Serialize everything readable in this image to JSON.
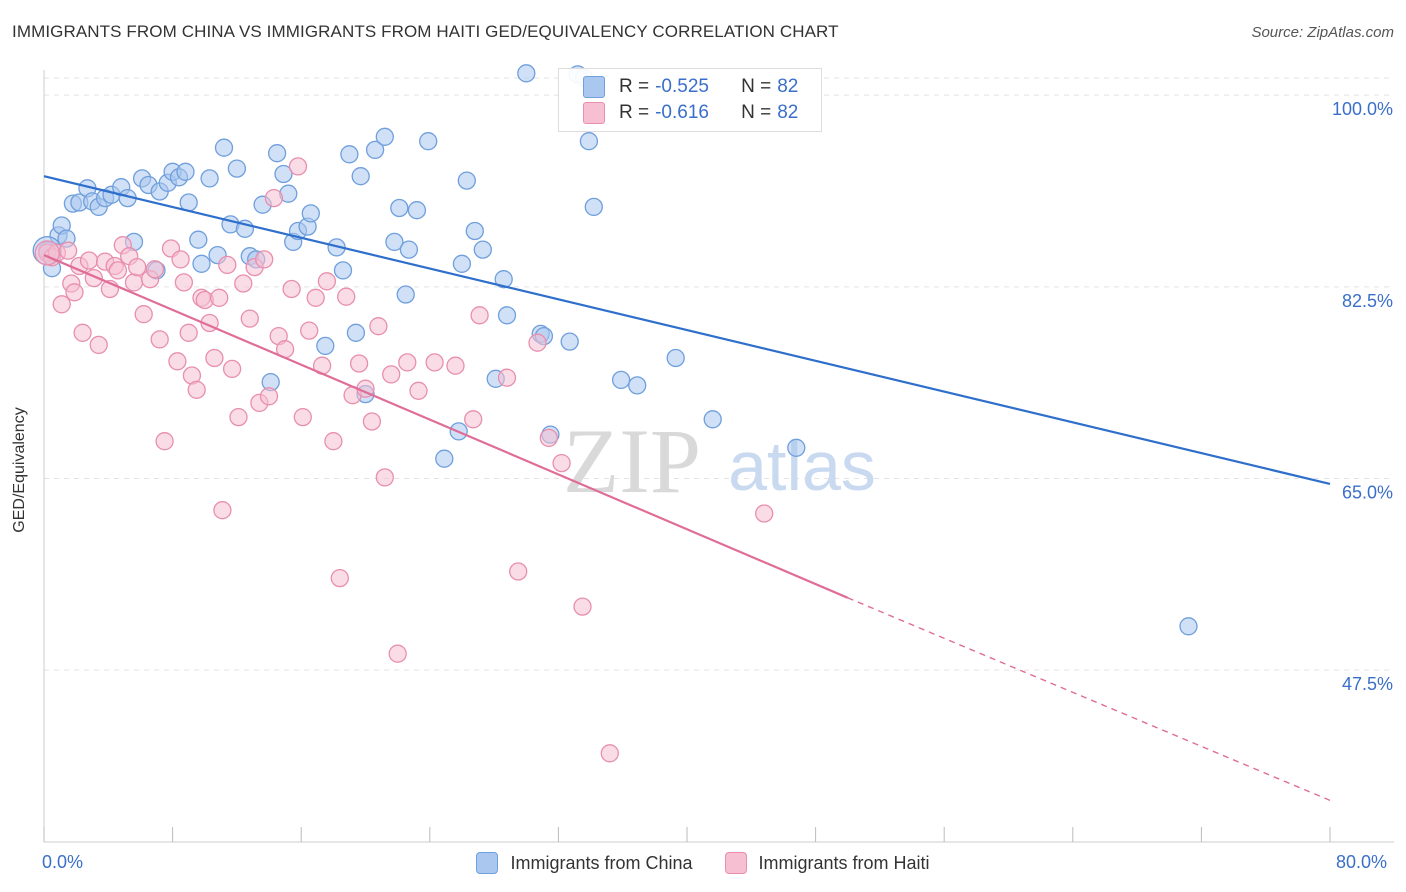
{
  "title": "IMMIGRANTS FROM CHINA VS IMMIGRANTS FROM HAITI GED/EQUIVALENCY CORRELATION CHART",
  "source": "Source: ZipAtlas.com",
  "watermark": {
    "zip": "ZIP",
    "atlas": "atlas"
  },
  "colors": {
    "china_fill": "#a9c7ef",
    "china_stroke": "#6f9fdc",
    "china_line": "#2f6fcc",
    "haiti_fill": "#f6c0d2",
    "haiti_stroke": "#e88fae",
    "haiti_line": "#e06d98",
    "axis_label": "#3a6fc9",
    "grid": "#e3e3e3"
  },
  "legend_top": [
    {
      "r_key": "R =",
      "r_value": "-0.525",
      "n_key": "N =",
      "n_value": "82"
    },
    {
      "r_key": "R =",
      "r_value": "-0.616",
      "n_key": "N =",
      "n_value": "82"
    }
  ],
  "chart_data": {
    "type": "scatter",
    "title": "IMMIGRANTS FROM CHINA VS IMMIGRANTS FROM HAITI GED/EQUIVALENCY CORRELATION CHART",
    "xlabel": "",
    "ylabel": "GED/Equivalency",
    "xlim": [
      0,
      80
    ],
    "ylim": [
      31.8,
      102.3
    ],
    "x_tick_labels": [
      "0.0%",
      "80.0%"
    ],
    "y_ticks": [
      100.0,
      82.5,
      65.0,
      47.5
    ],
    "y_tick_labels": [
      "100.0%",
      "82.5%",
      "65.0%",
      "47.5%"
    ],
    "grid": true,
    "legend_position": "bottom-center",
    "series": [
      {
        "name": "Immigrants from China",
        "r": -0.525,
        "n": 82,
        "trend": {
          "x0": 0,
          "y0": 92.6,
          "x1": 80,
          "y1": 64.5
        },
        "points": [
          [
            0.2,
            85.8
          ],
          [
            0.5,
            84.2
          ],
          [
            0.9,
            87.2
          ],
          [
            1.1,
            88.1
          ],
          [
            1.4,
            86.9
          ],
          [
            1.8,
            90.1
          ],
          [
            2.2,
            90.2
          ],
          [
            2.7,
            91.5
          ],
          [
            3.0,
            90.3
          ],
          [
            3.4,
            89.8
          ],
          [
            3.8,
            90.6
          ],
          [
            4.2,
            90.9
          ],
          [
            4.8,
            91.6
          ],
          [
            5.2,
            90.6
          ],
          [
            5.6,
            86.6
          ],
          [
            6.1,
            92.4
          ],
          [
            6.5,
            91.8
          ],
          [
            7.0,
            84.0
          ],
          [
            7.2,
            91.2
          ],
          [
            7.7,
            92.0
          ],
          [
            8.0,
            93.0
          ],
          [
            8.4,
            92.5
          ],
          [
            8.8,
            93.0
          ],
          [
            9.0,
            90.2
          ],
          [
            9.6,
            86.8
          ],
          [
            9.8,
            84.6
          ],
          [
            10.3,
            92.4
          ],
          [
            10.8,
            85.4
          ],
          [
            11.2,
            95.2
          ],
          [
            11.6,
            88.2
          ],
          [
            12.0,
            93.3
          ],
          [
            12.5,
            87.8
          ],
          [
            12.8,
            85.3
          ],
          [
            13.2,
            85.0
          ],
          [
            13.6,
            90.0
          ],
          [
            14.1,
            73.8
          ],
          [
            14.5,
            94.7
          ],
          [
            14.9,
            92.8
          ],
          [
            15.2,
            91.0
          ],
          [
            15.5,
            86.6
          ],
          [
            15.8,
            87.6
          ],
          [
            16.4,
            88.0
          ],
          [
            16.6,
            89.2
          ],
          [
            17.5,
            77.1
          ],
          [
            18.2,
            86.1
          ],
          [
            18.6,
            84.0
          ],
          [
            19.0,
            94.6
          ],
          [
            19.4,
            78.3
          ],
          [
            19.7,
            92.6
          ],
          [
            20.0,
            72.7
          ],
          [
            20.6,
            95.0
          ],
          [
            21.2,
            96.2
          ],
          [
            21.8,
            86.6
          ],
          [
            22.1,
            89.7
          ],
          [
            22.5,
            81.8
          ],
          [
            22.7,
            85.9
          ],
          [
            23.2,
            89.5
          ],
          [
            23.9,
            95.8
          ],
          [
            24.9,
            66.8
          ],
          [
            25.8,
            69.3
          ],
          [
            26.0,
            84.6
          ],
          [
            26.3,
            92.2
          ],
          [
            26.8,
            87.6
          ],
          [
            27.3,
            85.9
          ],
          [
            28.1,
            74.1
          ],
          [
            28.6,
            83.2
          ],
          [
            28.8,
            79.9
          ],
          [
            30.0,
            102.0
          ],
          [
            30.9,
            78.2
          ],
          [
            31.1,
            78.0
          ],
          [
            31.5,
            69.0
          ],
          [
            32.7,
            77.5
          ],
          [
            33.2,
            101.9
          ],
          [
            33.6,
            101.6
          ],
          [
            33.9,
            95.8
          ],
          [
            34.2,
            89.8
          ],
          [
            35.9,
            74.0
          ],
          [
            36.9,
            73.5
          ],
          [
            39.3,
            76.0
          ],
          [
            41.6,
            70.4
          ],
          [
            46.8,
            67.8
          ],
          [
            71.2,
            51.5
          ]
        ]
      },
      {
        "name": "Immigrants from Haiti",
        "r": -0.616,
        "n": 82,
        "trend": {
          "x0": 0,
          "y0": 85.4,
          "x1": 50,
          "y1": 54.1,
          "dash_x1": 80,
          "dash_y1": 35.6
        },
        "points": [
          [
            0.2,
            85.6
          ],
          [
            0.5,
            85.2
          ],
          [
            0.8,
            85.6
          ],
          [
            1.1,
            80.9
          ],
          [
            1.5,
            85.8
          ],
          [
            1.7,
            82.8
          ],
          [
            1.9,
            82.0
          ],
          [
            2.2,
            84.4
          ],
          [
            2.4,
            78.3
          ],
          [
            2.8,
            84.9
          ],
          [
            3.1,
            83.3
          ],
          [
            3.4,
            77.2
          ],
          [
            3.8,
            84.8
          ],
          [
            4.1,
            82.3
          ],
          [
            4.4,
            84.4
          ],
          [
            4.6,
            84.0
          ],
          [
            4.9,
            86.3
          ],
          [
            5.3,
            85.3
          ],
          [
            5.6,
            82.9
          ],
          [
            5.8,
            84.3
          ],
          [
            6.2,
            80.0
          ],
          [
            6.6,
            83.2
          ],
          [
            6.9,
            84.1
          ],
          [
            7.2,
            77.7
          ],
          [
            7.5,
            68.4
          ],
          [
            7.9,
            86.0
          ],
          [
            8.3,
            75.7
          ],
          [
            8.5,
            85.0
          ],
          [
            8.7,
            82.9
          ],
          [
            9.0,
            78.3
          ],
          [
            9.2,
            74.4
          ],
          [
            9.5,
            73.1
          ],
          [
            9.8,
            81.5
          ],
          [
            10.0,
            81.3
          ],
          [
            10.3,
            79.2
          ],
          [
            10.6,
            76.0
          ],
          [
            10.9,
            81.5
          ],
          [
            11.1,
            62.1
          ],
          [
            11.4,
            84.5
          ],
          [
            11.7,
            75.0
          ],
          [
            12.1,
            70.6
          ],
          [
            12.4,
            82.8
          ],
          [
            12.8,
            79.6
          ],
          [
            13.1,
            84.3
          ],
          [
            13.4,
            71.9
          ],
          [
            13.7,
            85.0
          ],
          [
            14.0,
            72.5
          ],
          [
            14.3,
            90.6
          ],
          [
            14.6,
            78.0
          ],
          [
            15.0,
            76.8
          ],
          [
            15.4,
            82.3
          ],
          [
            15.8,
            93.5
          ],
          [
            16.1,
            70.6
          ],
          [
            16.5,
            78.5
          ],
          [
            16.9,
            81.5
          ],
          [
            17.3,
            75.3
          ],
          [
            17.6,
            83.0
          ],
          [
            18.0,
            68.4
          ],
          [
            18.4,
            55.9
          ],
          [
            18.8,
            81.6
          ],
          [
            19.2,
            72.6
          ],
          [
            19.6,
            75.5
          ],
          [
            20.0,
            73.2
          ],
          [
            20.4,
            70.2
          ],
          [
            20.8,
            78.9
          ],
          [
            21.2,
            65.1
          ],
          [
            21.6,
            74.5
          ],
          [
            22.0,
            49.0
          ],
          [
            22.6,
            75.6
          ],
          [
            23.3,
            73.0
          ],
          [
            24.3,
            75.6
          ],
          [
            25.6,
            75.3
          ],
          [
            26.7,
            70.4
          ],
          [
            27.1,
            79.9
          ],
          [
            28.8,
            74.2
          ],
          [
            29.5,
            56.5
          ],
          [
            30.7,
            77.4
          ],
          [
            31.4,
            68.7
          ],
          [
            32.2,
            66.4
          ],
          [
            33.5,
            53.3
          ],
          [
            35.2,
            39.9
          ],
          [
            44.8,
            61.8
          ]
        ]
      }
    ]
  },
  "legend_bottom": [
    {
      "label": "Immigrants from China"
    },
    {
      "label": "Immigrants from Haiti"
    }
  ]
}
